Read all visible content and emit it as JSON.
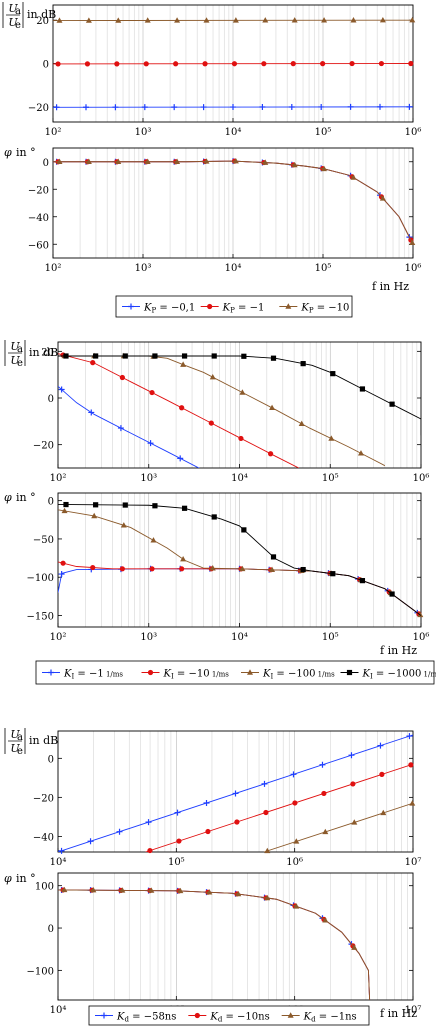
{
  "figures": [
    {
      "legend": [
        {
          "math": "K",
          "sub": "P",
          "rest": " = −0,1",
          "color": "#1f3fff",
          "marker": "plus"
        },
        {
          "math": "K",
          "sub": "P",
          "rest": " = −1",
          "color": "#e01010",
          "marker": "circle"
        },
        {
          "math": "K",
          "sub": "P",
          "rest": " = −10",
          "color": "#8b5a2b",
          "marker": "triangle"
        }
      ],
      "xaxis_label": "f in Hz"
    },
    {
      "legend": [
        {
          "math": "K",
          "sub": "I",
          "rest": " = −1",
          "frac": "1/ms",
          "color": "#1f3fff",
          "marker": "plus"
        },
        {
          "math": "K",
          "sub": "I",
          "rest": " = −10",
          "frac": "1/ms",
          "color": "#e01010",
          "marker": "circle"
        },
        {
          "math": "K",
          "sub": "I",
          "rest": " = −100",
          "frac": "1/ms",
          "color": "#8b5a2b",
          "marker": "triangle"
        },
        {
          "math": "K",
          "sub": "I",
          "rest": " = −1000",
          "frac": "1/ms",
          "color": "#000000",
          "marker": "square"
        }
      ],
      "xaxis_label": "f in Hz"
    },
    {
      "legend": [
        {
          "math": "K",
          "sub": "d",
          "rest": " = −58ns",
          "color": "#1f3fff",
          "marker": "plus"
        },
        {
          "math": "K",
          "sub": "d",
          "rest": " = −10ns",
          "color": "#e01010",
          "marker": "circle"
        },
        {
          "math": "K",
          "sub": "d",
          "rest": " = −1ns",
          "color": "#8b5a2b",
          "marker": "triangle"
        }
      ],
      "xaxis_label": "f in Hz"
    }
  ],
  "chart_data": [
    {
      "type": "line",
      "title": "",
      "ylabel": "|Ua/Ue| in dB",
      "xscale": "log",
      "xlim": [
        100,
        1000000
      ],
      "ylim": [
        -27,
        27
      ],
      "yticks": [
        -20,
        0,
        20
      ],
      "xticks": [
        100,
        1000,
        10000,
        100000,
        1000000
      ],
      "xticklabels": [
        "10²",
        "10³",
        "10⁴",
        "10⁵",
        "10⁶"
      ],
      "grid": "x-log",
      "series": [
        {
          "name": "KP = −0,1",
          "color": "#1f3fff",
          "marker": "plus",
          "points": [
            [
              100,
              -20.2
            ],
            [
              1000000,
              -20
            ]
          ]
        },
        {
          "name": "KP = −1",
          "color": "#e01010",
          "marker": "circle",
          "points": [
            [
              100,
              -0.2
            ],
            [
              1000000,
              0
            ]
          ]
        },
        {
          "name": "KP = −10",
          "color": "#8b5a2b",
          "marker": "triangle",
          "points": [
            [
              100,
              19.8
            ],
            [
              1000000,
              20
            ]
          ]
        }
      ]
    },
    {
      "type": "line",
      "title": "",
      "ylabel": "φ in °",
      "xscale": "log",
      "xlim": [
        100,
        1000000
      ],
      "ylim": [
        -70,
        10
      ],
      "yticks": [
        -60,
        -40,
        -20,
        0
      ],
      "xticks": [
        100,
        1000,
        10000,
        100000,
        1000000
      ],
      "xticklabels": [
        "10²",
        "10³",
        "10⁴",
        "10⁵",
        "10⁶"
      ],
      "grid": "x-log",
      "series": [
        {
          "name": "KP = −0,1",
          "color": "#1f3fff",
          "marker": "plus",
          "points": [
            [
              100,
              0
            ],
            [
              3000,
              0
            ],
            [
              10000,
              0.5
            ],
            [
              30000,
              -1
            ],
            [
              60000,
              -3
            ],
            [
              100000,
              -5
            ],
            [
              200000,
              -10
            ],
            [
              400000,
              -22
            ],
            [
              700000,
              -40
            ],
            [
              1000000,
              -60
            ]
          ]
        },
        {
          "name": "KP = −1",
          "color": "#e01010",
          "marker": "circle",
          "points": [
            [
              100,
              0
            ],
            [
              3000,
              0
            ],
            [
              10000,
              0.5
            ],
            [
              30000,
              -1
            ],
            [
              60000,
              -3
            ],
            [
              100000,
              -5
            ],
            [
              200000,
              -10
            ],
            [
              400000,
              -22
            ],
            [
              700000,
              -40
            ],
            [
              1000000,
              -60
            ]
          ]
        },
        {
          "name": "KP = −10",
          "color": "#8b5a2b",
          "marker": "triangle",
          "points": [
            [
              100,
              0
            ],
            [
              3000,
              0
            ],
            [
              10000,
              0.5
            ],
            [
              30000,
              -1
            ],
            [
              60000,
              -3
            ],
            [
              100000,
              -5
            ],
            [
              200000,
              -10
            ],
            [
              400000,
              -22
            ],
            [
              700000,
              -40
            ],
            [
              1000000,
              -60
            ]
          ]
        }
      ]
    },
    {
      "type": "line",
      "title": "",
      "ylabel": "|Ua/Ue| in dB",
      "xscale": "log",
      "xlim": [
        100,
        1000000
      ],
      "ylim": [
        -30,
        24
      ],
      "yticks": [
        -20,
        0,
        20
      ],
      "xticks": [
        100,
        1000,
        10000,
        100000,
        1000000
      ],
      "xticklabels": [
        "10²",
        "10³",
        "10⁴",
        "10⁵",
        "10⁶"
      ],
      "grid": "x-log",
      "series": [
        {
          "name": "KI = −1 1/ms",
          "color": "#1f3fff",
          "marker": "plus",
          "points": [
            [
              100,
              5
            ],
            [
              160,
              -2
            ],
            [
              250,
              -7
            ],
            [
              630,
              -15
            ],
            [
              1600,
              -23
            ],
            [
              4000,
              -31
            ]
          ]
        },
        {
          "name": "KI = −10 1/ms",
          "color": "#e01010",
          "marker": "circle",
          "points": [
            [
              100,
              19
            ],
            [
              250,
              15
            ],
            [
              630,
              7
            ],
            [
              1600,
              -1
            ],
            [
              4000,
              -9
            ],
            [
              10000,
              -17
            ],
            [
              25000,
              -25
            ],
            [
              45000,
              -30
            ]
          ]
        },
        {
          "name": "KI = −100 1/ms",
          "color": "#8b5a2b",
          "marker": "triangle",
          "points": [
            [
              100,
              18
            ],
            [
              1000,
              18
            ],
            [
              1600,
              17
            ],
            [
              2500,
              14
            ],
            [
              4000,
              11
            ],
            [
              10000,
              3
            ],
            [
              25000,
              -5
            ],
            [
              60000,
              -13
            ],
            [
              160000,
              -21
            ],
            [
              400000,
              -29
            ]
          ]
        },
        {
          "name": "KI = −1000 1/ms",
          "color": "#000000",
          "marker": "square",
          "points": [
            [
              100,
              18
            ],
            [
              10000,
              18
            ],
            [
              16000,
              17.5
            ],
            [
              25000,
              17
            ],
            [
              63000,
              14
            ],
            [
              100000,
              11
            ],
            [
              250000,
              3
            ],
            [
              630000,
              -5
            ],
            [
              1000000,
              -9
            ],
            [
              1000000,
              -16
            ]
          ]
        }
      ]
    },
    {
      "type": "line",
      "title": "",
      "ylabel": "φ in °",
      "xscale": "log",
      "xlim": [
        100,
        1000000
      ],
      "ylim": [
        -165,
        10
      ],
      "yticks": [
        -150,
        -100,
        -50,
        0
      ],
      "xticks": [
        100,
        1000,
        10000,
        100000,
        1000000
      ],
      "xticklabels": [
        "10²",
        "10³",
        "10⁴",
        "10⁵",
        "10⁶"
      ],
      "grid": "x-log",
      "series": [
        {
          "name": "KI = −1 1/ms",
          "color": "#1f3fff",
          "marker": "plus",
          "points": [
            [
              100,
              -120
            ],
            [
              110,
              -95
            ],
            [
              160,
              -90
            ],
            [
              1000,
              -89
            ],
            [
              10000,
              -89
            ],
            [
              63000,
              -92
            ],
            [
              160000,
              -98
            ],
            [
              400000,
              -115
            ],
            [
              1000000,
              -150
            ]
          ]
        },
        {
          "name": "KI = −10 1/ms",
          "color": "#e01010",
          "marker": "circle",
          "points": [
            [
              100,
              -80
            ],
            [
              160,
              -86
            ],
            [
              400,
              -89
            ],
            [
              10000,
              -89
            ],
            [
              63000,
              -92
            ],
            [
              160000,
              -98
            ],
            [
              400000,
              -115
            ],
            [
              1000000,
              -150
            ]
          ]
        },
        {
          "name": "KI = −100 1/ms",
          "color": "#8b5a2b",
          "marker": "triangle",
          "points": [
            [
              100,
              -12
            ],
            [
              250,
              -20
            ],
            [
              630,
              -35
            ],
            [
              1600,
              -62
            ],
            [
              2500,
              -78
            ],
            [
              4000,
              -88
            ],
            [
              10000,
              -89
            ],
            [
              63000,
              -92
            ],
            [
              160000,
              -98
            ],
            [
              400000,
              -115
            ],
            [
              1000000,
              -150
            ]
          ]
        },
        {
          "name": "KI = −1000 1/ms",
          "color": "#000000",
          "marker": "square",
          "points": [
            [
              100,
              -5
            ],
            [
              1000,
              -6
            ],
            [
              2500,
              -10
            ],
            [
              6300,
              -24
            ],
            [
              10000,
              -33
            ],
            [
              16000,
              -55
            ],
            [
              25000,
              -76
            ],
            [
              40000,
              -88
            ],
            [
              63000,
              -92
            ],
            [
              160000,
              -98
            ],
            [
              400000,
              -115
            ],
            [
              1000000,
              -150
            ]
          ]
        }
      ]
    },
    {
      "type": "line",
      "title": "",
      "ylabel": "|Ua/Ue| in dB",
      "xscale": "log",
      "xlim": [
        10000,
        10000000
      ],
      "ylim": [
        -48,
        14
      ],
      "yticks": [
        -40,
        -20,
        0
      ],
      "xticks": [
        10000,
        100000,
        1000000,
        10000000
      ],
      "xticklabels": [
        "10⁴",
        "10⁵",
        "10⁶",
        "10⁷"
      ],
      "grid": "x-log",
      "series": [
        {
          "name": "Kd = −58ns",
          "color": "#1f3fff",
          "marker": "plus",
          "points": [
            [
              10000,
              -48
            ],
            [
              10000000,
              12
            ]
          ]
        },
        {
          "name": "Kd = −10ns",
          "color": "#e01010",
          "marker": "circle",
          "points": [
            [
              55000,
              -48
            ],
            [
              10000000,
              -3
            ]
          ]
        },
        {
          "name": "Kd = −1ns",
          "color": "#8b5a2b",
          "marker": "triangle",
          "points": [
            [
              550000,
              -48
            ],
            [
              10000000,
              -23
            ]
          ]
        }
      ]
    },
    {
      "type": "line",
      "title": "",
      "ylabel": "φ in °",
      "xscale": "log",
      "xlim": [
        10000,
        10000000
      ],
      "ylim": [
        -170,
        130
      ],
      "yticks": [
        -100,
        0,
        100
      ],
      "xticks": [
        10000,
        100000,
        1000000,
        10000000
      ],
      "xticklabels": [
        "10⁴",
        "10⁵",
        "10⁶",
        "10⁷"
      ],
      "grid": "x-log",
      "series": [
        {
          "name": "Kd = −58ns",
          "color": "#1f3fff",
          "marker": "plus",
          "points": [
            [
              10000,
              90
            ],
            [
              100000,
              88
            ],
            [
              300000,
              82
            ],
            [
              700000,
              68
            ],
            [
              1500000,
              35
            ],
            [
              2500000,
              -10
            ],
            [
              3500000,
              -60
            ],
            [
              4200000,
              -100
            ],
            [
              4300000,
              -170
            ]
          ]
        },
        {
          "name": "Kd = −10ns",
          "color": "#e01010",
          "marker": "circle",
          "points": [
            [
              10000,
              90
            ],
            [
              100000,
              88
            ],
            [
              300000,
              82
            ],
            [
              700000,
              68
            ],
            [
              1500000,
              35
            ],
            [
              2500000,
              -10
            ],
            [
              3500000,
              -60
            ],
            [
              4200000,
              -100
            ],
            [
              4300000,
              -170
            ]
          ]
        },
        {
          "name": "Kd = −1ns",
          "color": "#8b5a2b",
          "marker": "triangle",
          "points": [
            [
              10000,
              90
            ],
            [
              100000,
              88
            ],
            [
              300000,
              82
            ],
            [
              700000,
              68
            ],
            [
              1500000,
              35
            ],
            [
              2500000,
              -10
            ],
            [
              3500000,
              -60
            ],
            [
              4200000,
              -100
            ],
            [
              4300000,
              -170
            ]
          ]
        }
      ]
    }
  ]
}
